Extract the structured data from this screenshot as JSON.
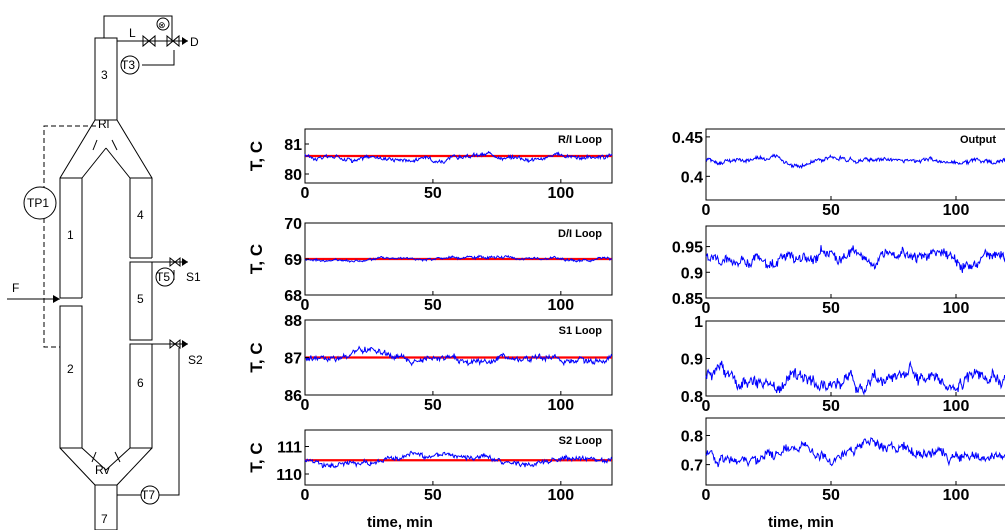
{
  "diagram": {
    "labels": {
      "L": "L",
      "D": "D",
      "T3": "T3",
      "sec3": "3",
      "RI": "Rl",
      "TP1": "TP1",
      "sec1": "1",
      "sec4": "4",
      "T5": "T5",
      "S1": "S1",
      "F": "F",
      "sec5": "5",
      "S2": "S2",
      "sec2": "2",
      "sec6": "6",
      "Rv": "Rv",
      "T7": "T7",
      "sec7": "7",
      "valve_symbol": "⊗"
    }
  },
  "xlabel": "time, min",
  "chart_data": [
    {
      "type": "line",
      "panel": "left-1",
      "title": "R/I Loop",
      "ylabel": "T, C",
      "xlim": [
        0,
        120
      ],
      "ylim": [
        79.7,
        81.5
      ],
      "xticks": [
        "0",
        "50",
        "100"
      ],
      "yticks": [
        "80",
        "81"
      ],
      "xtick_values": [
        0,
        50,
        100
      ],
      "ytick_values": [
        80,
        81
      ],
      "series": [
        {
          "kind": "setpoint",
          "color": "#ff0000",
          "y": 80.6
        },
        {
          "kind": "measured",
          "color": "#0000ff",
          "mean": 80.6,
          "amplitude": 0.08
        }
      ]
    },
    {
      "type": "line",
      "panel": "left-2",
      "title": "D/I Loop",
      "ylabel": "T, C",
      "xlim": [
        0,
        120
      ],
      "ylim": [
        68,
        70
      ],
      "xticks": [
        "0",
        "50",
        "100"
      ],
      "yticks": [
        "68",
        "69",
        "70"
      ],
      "xtick_values": [
        0,
        50,
        100
      ],
      "ytick_values": [
        68,
        69,
        70
      ],
      "series": [
        {
          "kind": "setpoint",
          "color": "#ff0000",
          "y": 69.0
        },
        {
          "kind": "measured",
          "color": "#0000ff",
          "mean": 69.0,
          "amplitude": 0.04
        }
      ]
    },
    {
      "type": "line",
      "panel": "left-3",
      "title": "S1 Loop",
      "ylabel": "T, C",
      "xlim": [
        0,
        120
      ],
      "ylim": [
        86,
        88
      ],
      "xticks": [
        "0",
        "50",
        "100"
      ],
      "yticks": [
        "86",
        "87",
        "88"
      ],
      "xtick_values": [
        0,
        50,
        100
      ],
      "ytick_values": [
        86,
        87,
        88
      ],
      "series": [
        {
          "kind": "setpoint",
          "color": "#ff0000",
          "y": 87.0
        },
        {
          "kind": "measured",
          "color": "#0000ff",
          "mean": 87.0,
          "amplitude": 0.09
        }
      ]
    },
    {
      "type": "line",
      "panel": "left-4",
      "title": "S2 Loop",
      "ylabel": "T, C",
      "xlim": [
        0,
        120
      ],
      "ylim": [
        109.6,
        111.6
      ],
      "xticks": [
        "0",
        "50",
        "100"
      ],
      "yticks": [
        "110",
        "111"
      ],
      "xtick_values": [
        0,
        50,
        100
      ],
      "ytick_values": [
        110,
        111
      ],
      "series": [
        {
          "kind": "setpoint",
          "color": "#ff0000",
          "y": 110.5
        },
        {
          "kind": "measured",
          "color": "#0000ff",
          "mean": 110.5,
          "amplitude": 0.1
        }
      ]
    },
    {
      "type": "line",
      "panel": "right-1",
      "title": "Output",
      "ylabel": "",
      "xlim": [
        0,
        120
      ],
      "ylim": [
        0.37,
        0.46
      ],
      "xticks": [
        "0",
        "50",
        "100"
      ],
      "yticks": [
        "0.4",
        "0.45"
      ],
      "xtick_values": [
        0,
        50,
        100
      ],
      "ytick_values": [
        0.4,
        0.45
      ],
      "series": [
        {
          "kind": "measured",
          "color": "#0000ff",
          "mean": 0.42,
          "amplitude": 0.003
        }
      ]
    },
    {
      "type": "line",
      "panel": "right-2",
      "title": "",
      "ylabel": "",
      "xlim": [
        0,
        120
      ],
      "ylim": [
        0.85,
        0.99
      ],
      "xticks": [
        "0",
        "50",
        "100"
      ],
      "yticks": [
        "0.85",
        "0.9",
        "0.95"
      ],
      "xtick_values": [
        0,
        50,
        100
      ],
      "ytick_values": [
        0.85,
        0.9,
        0.95
      ],
      "series": [
        {
          "kind": "measured",
          "color": "#0000ff",
          "mean": 0.935,
          "amplitude": 0.012
        }
      ]
    },
    {
      "type": "line",
      "panel": "right-3",
      "title": "",
      "ylabel": "",
      "xlim": [
        0,
        120
      ],
      "ylim": [
        0.8,
        1.0
      ],
      "xticks": [
        "0",
        "50",
        "100"
      ],
      "yticks": [
        "0.8",
        "0.9",
        "1"
      ],
      "xtick_values": [
        0,
        50,
        100
      ],
      "ytick_values": [
        0.8,
        0.9,
        1.0
      ],
      "series": [
        {
          "kind": "measured",
          "color": "#0000ff",
          "mean": 0.86,
          "amplitude": 0.02
        }
      ]
    },
    {
      "type": "line",
      "panel": "right-4",
      "title": "",
      "ylabel": "",
      "xlim": [
        0,
        120
      ],
      "ylim": [
        0.63,
        0.86
      ],
      "xticks": [
        "0",
        "50",
        "100"
      ],
      "yticks": [
        "0.7",
        "0.8"
      ],
      "xtick_values": [
        0,
        50,
        100
      ],
      "ytick_values": [
        0.7,
        0.8
      ],
      "series": [
        {
          "kind": "measured",
          "color": "#0000ff",
          "mean": 0.74,
          "amplitude": 0.02
        }
      ]
    }
  ]
}
